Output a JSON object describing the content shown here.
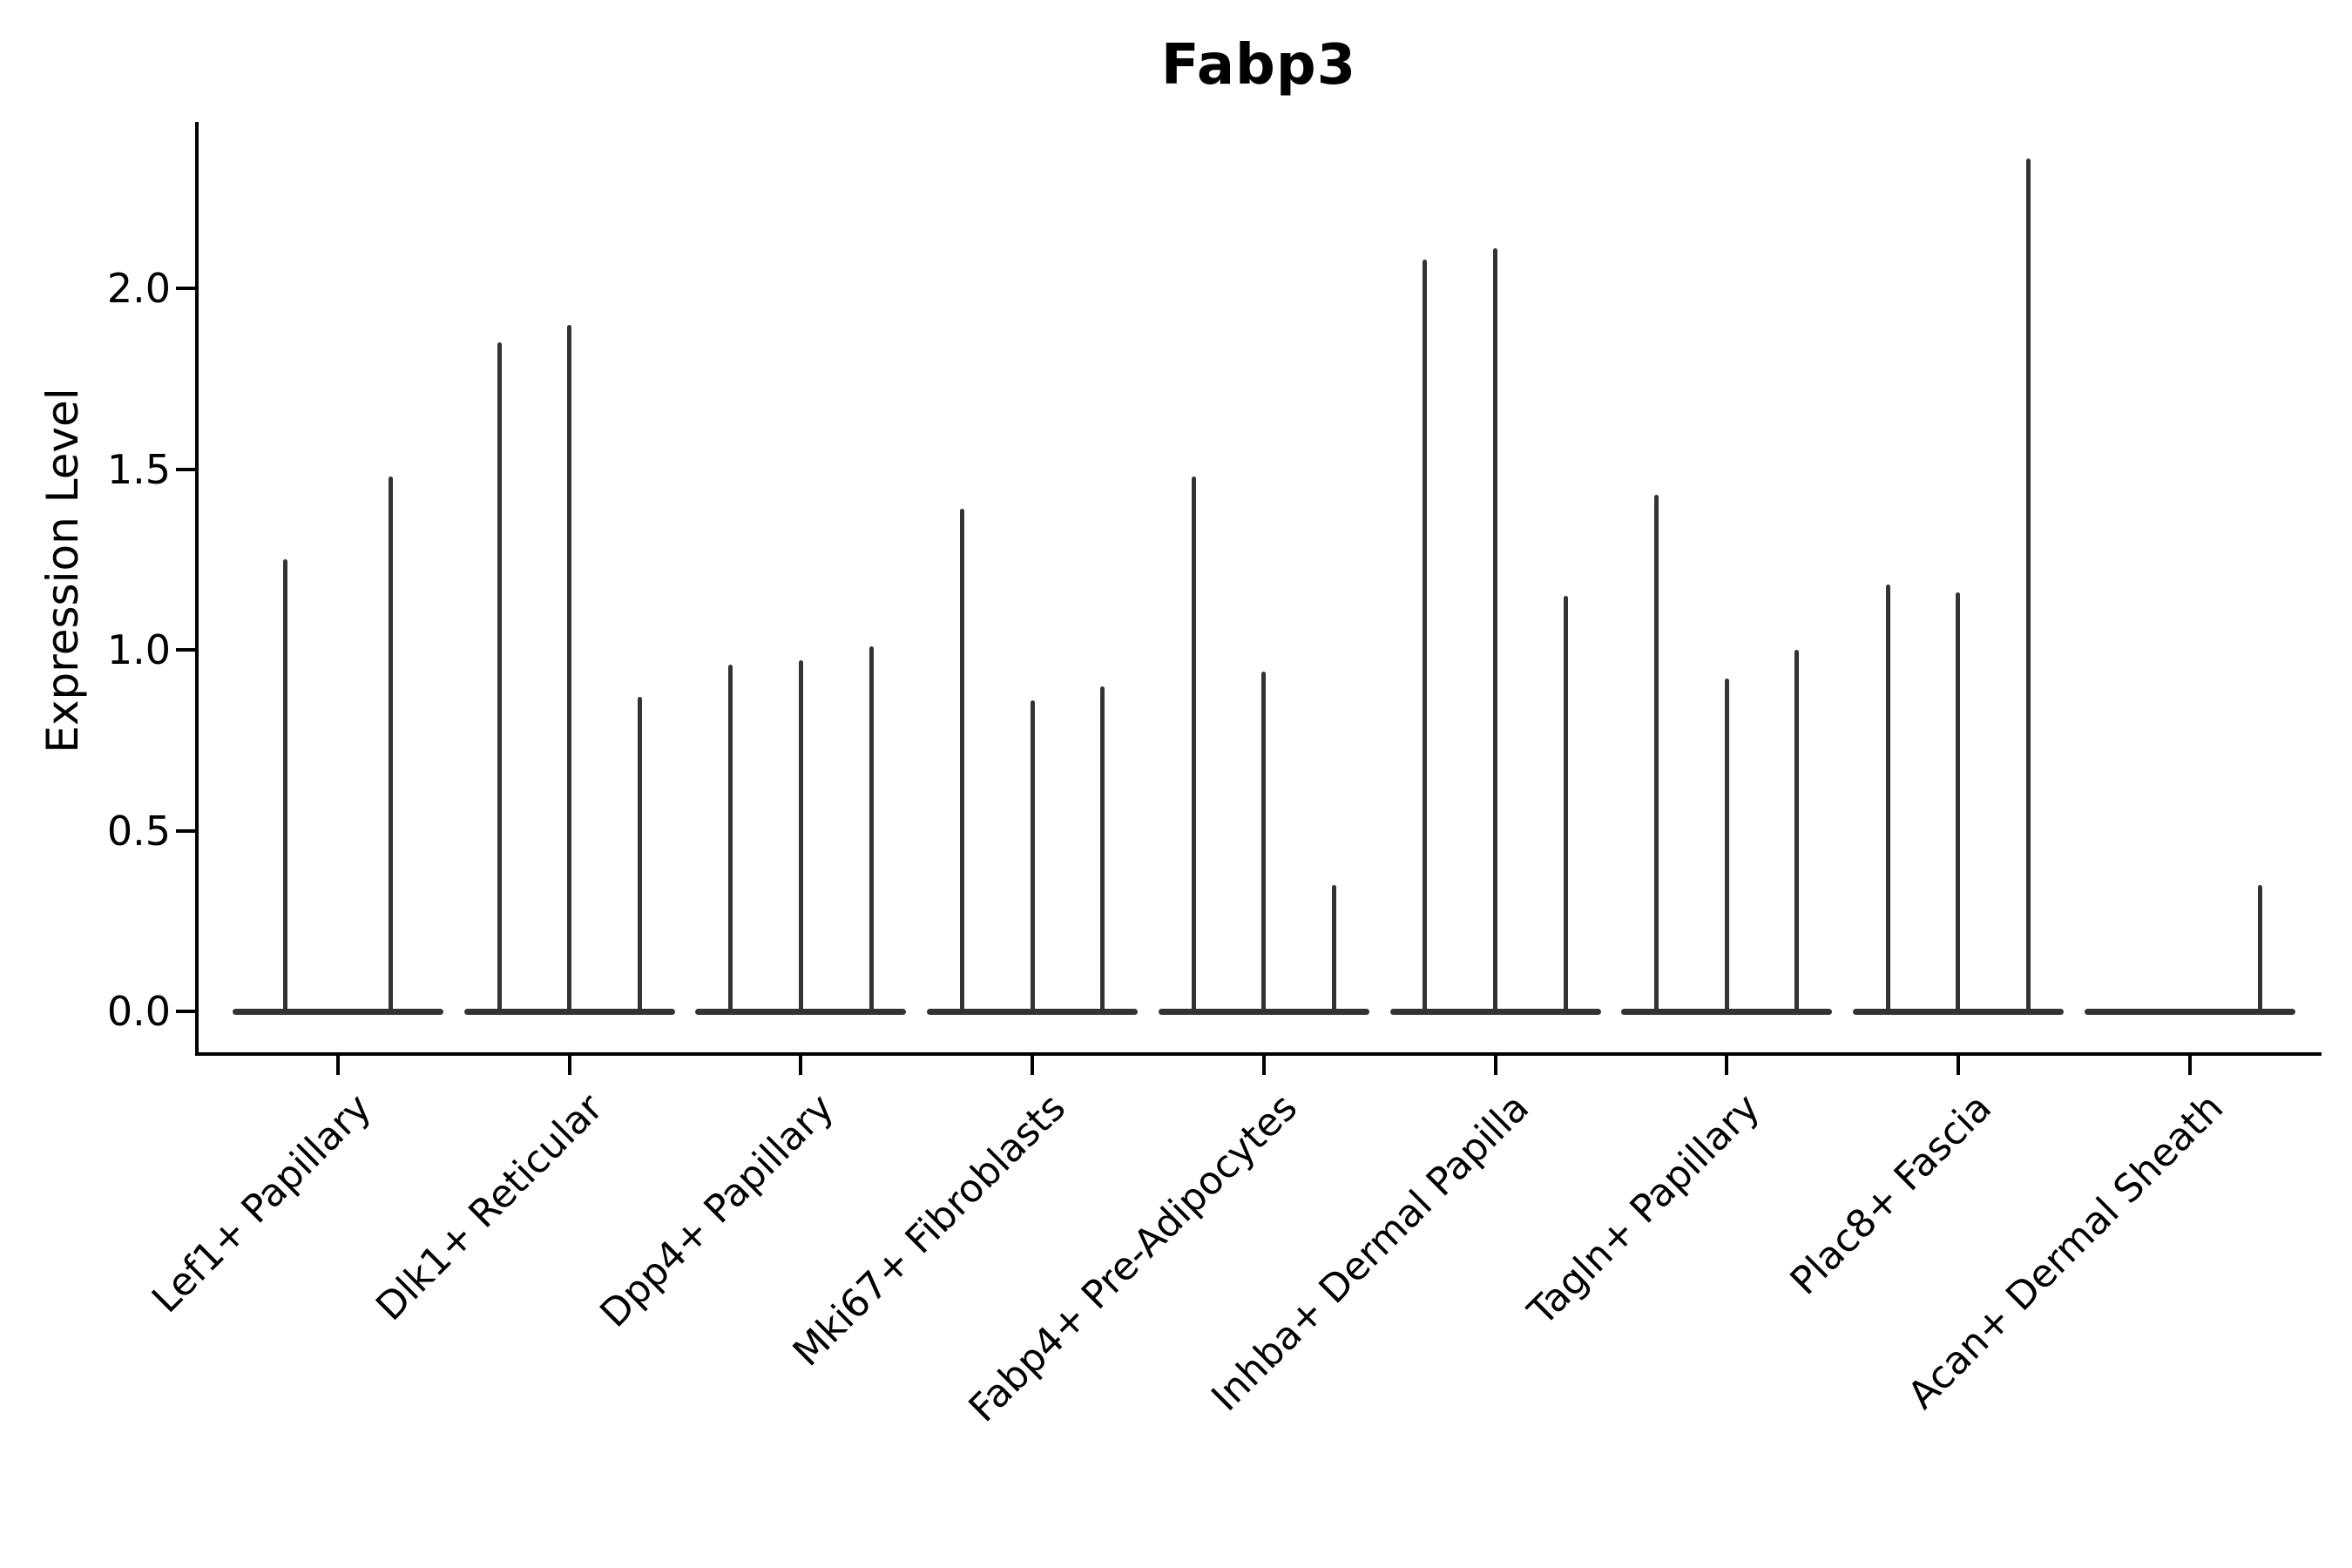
{
  "chart_data": {
    "type": "violin",
    "style": "collapsed-violins-with-max-spikes",
    "title": "Fabp3",
    "ylabel": "Expression Level",
    "xlabel": "",
    "y_tick_labels": [
      "0.0",
      "0.5",
      "1.0",
      "1.5",
      "2.0"
    ],
    "y_tick_values": [
      0.0,
      0.5,
      1.0,
      1.5,
      2.0
    ],
    "ylim": [
      -0.11,
      2.46
    ],
    "grid": false,
    "legend": "none",
    "categories": [
      "Lef1+ Papillary",
      "Dlk1+ Reticular",
      "Dpp4+ Papillary",
      "Mki67+ Fibroblasts",
      "Fabp4+ Pre-Adipocytes",
      "Inhba+ Dermal Papilla",
      "Tagln+ Papillary",
      "Plac8+ Fascia",
      "Acan+ Dermal Sheath"
    ],
    "series": [
      {
        "category": "Lef1+ Papillary",
        "violin_max_values": [
          1.25,
          1.48
        ]
      },
      {
        "category": "Dlk1+ Reticular",
        "violin_max_values": [
          1.85,
          1.9,
          0.87
        ]
      },
      {
        "category": "Dpp4+ Papillary",
        "violin_max_values": [
          0.96,
          0.97,
          1.01
        ]
      },
      {
        "category": "Mki67+ Fibroblasts",
        "violin_max_values": [
          1.39,
          0.86,
          0.9
        ]
      },
      {
        "category": "Fabp4+ Pre-Adipocytes",
        "violin_max_values": [
          1.48,
          0.94,
          0.35
        ]
      },
      {
        "category": "Inhba+ Dermal Papilla",
        "violin_max_values": [
          2.08,
          2.11,
          1.15
        ]
      },
      {
        "category": "Tagln+ Papillary",
        "violin_max_values": [
          1.43,
          0.92,
          1.0
        ]
      },
      {
        "category": "Plac8+ Fascia",
        "violin_max_values": [
          1.18,
          1.16,
          2.36
        ]
      },
      {
        "category": "Acan+ Dermal Sheath",
        "violin_max_values": [
          0.0,
          0.0,
          0.35
        ]
      }
    ],
    "colors": {
      "violin": "#333333",
      "axis": "#000000",
      "text": "#000000",
      "background": "#ffffff"
    }
  }
}
